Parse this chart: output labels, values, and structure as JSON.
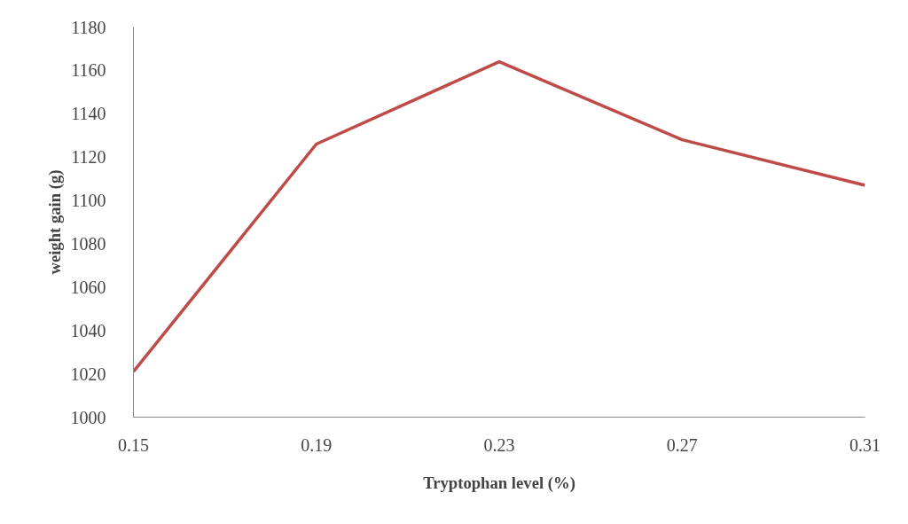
{
  "chart_data": {
    "type": "line",
    "xlabel": "Tryptophan level (%)",
    "ylabel": "weight gain (g)",
    "x": [
      0.15,
      0.19,
      0.23,
      0.27,
      0.31
    ],
    "series": [
      {
        "color": "#be4b48",
        "values": [
          1021,
          1126,
          1164,
          1128,
          1107
        ]
      }
    ],
    "xlim": [
      0.15,
      0.31
    ],
    "xticks": [
      {
        "value": 0.15,
        "label": "0.15"
      },
      {
        "value": 0.19,
        "label": "0.19"
      },
      {
        "value": 0.23,
        "label": "0.23"
      },
      {
        "value": 0.27,
        "label": "0.27"
      },
      {
        "value": 0.31,
        "label": "0.31"
      }
    ],
    "ylim": [
      1000,
      1180
    ],
    "yticks": [
      1000,
      1020,
      1040,
      1060,
      1080,
      1100,
      1120,
      1140,
      1160,
      1180
    ],
    "grid": false,
    "marker": "none",
    "line_style": "solid"
  }
}
